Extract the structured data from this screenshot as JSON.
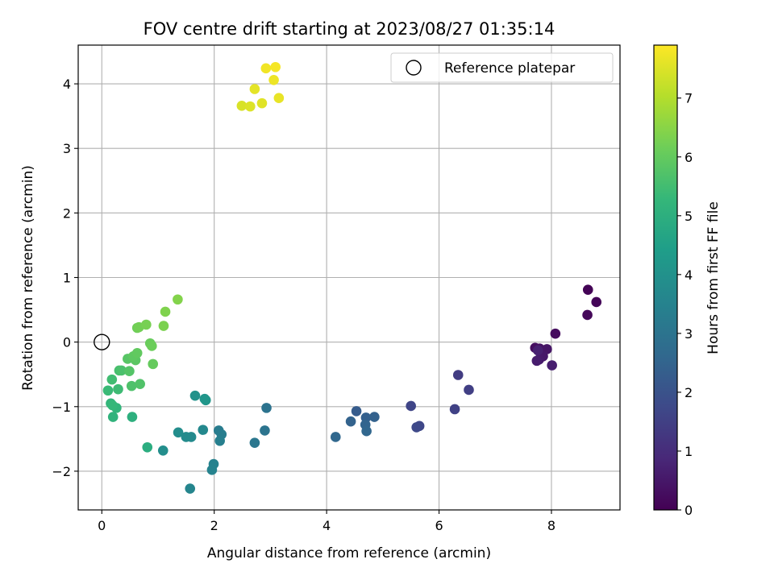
{
  "chart_data": {
    "type": "scatter",
    "title": "FOV centre drift starting at 2023/08/27 01:35:14",
    "xlabel": "Angular distance from reference (arcmin)",
    "ylabel": "Rotation from reference (arcmin)",
    "xlim": [
      -0.42,
      9.22
    ],
    "ylim": [
      -2.6,
      4.6
    ],
    "xticks": [
      0,
      2,
      4,
      6,
      8
    ],
    "yticks": [
      -2,
      -1,
      0,
      1,
      2,
      3,
      4
    ],
    "grid": true,
    "legend": {
      "position": "top-right",
      "entries": [
        "Reference platepar"
      ]
    },
    "reference_point": {
      "x": 0,
      "y": 0,
      "marker": "open-circle"
    },
    "colorbar": {
      "label": "Hours from first FF file",
      "colormap": "viridis",
      "range": [
        0,
        7.9
      ],
      "ticks": [
        0,
        1,
        2,
        3,
        4,
        5,
        6,
        7
      ],
      "colors": [
        "#440154",
        "#482878",
        "#3e4989",
        "#31688e",
        "#26828e",
        "#1f9e89",
        "#35b779",
        "#6ece58",
        "#b5de2b",
        "#fde725"
      ]
    },
    "points": [
      {
        "x": 8.65,
        "y": 0.81,
        "h": 0.05
      },
      {
        "x": 8.8,
        "y": 0.62,
        "h": 0.1
      },
      {
        "x": 8.64,
        "y": 0.42,
        "h": 0.15
      },
      {
        "x": 8.07,
        "y": 0.13,
        "h": 0.25
      },
      {
        "x": 7.71,
        "y": -0.09,
        "h": 0.3
      },
      {
        "x": 7.79,
        "y": -0.1,
        "h": 0.4
      },
      {
        "x": 7.92,
        "y": -0.11,
        "h": 0.45
      },
      {
        "x": 7.85,
        "y": -0.22,
        "h": 0.5
      },
      {
        "x": 7.78,
        "y": -0.27,
        "h": 0.55
      },
      {
        "x": 7.74,
        "y": -0.29,
        "h": 0.6
      },
      {
        "x": 8.01,
        "y": -0.36,
        "h": 0.65
      },
      {
        "x": 7.76,
        "y": -0.13,
        "h": 0.7
      },
      {
        "x": 6.34,
        "y": -0.51,
        "h": 1.4
      },
      {
        "x": 6.53,
        "y": -0.74,
        "h": 1.5
      },
      {
        "x": 6.28,
        "y": -1.04,
        "h": 1.55
      },
      {
        "x": 5.5,
        "y": -0.99,
        "h": 1.65
      },
      {
        "x": 5.65,
        "y": -1.3,
        "h": 1.7
      },
      {
        "x": 5.6,
        "y": -1.32,
        "h": 1.75
      },
      {
        "x": 4.53,
        "y": -1.07,
        "h": 2.3
      },
      {
        "x": 4.7,
        "y": -1.17,
        "h": 2.4
      },
      {
        "x": 4.85,
        "y": -1.16,
        "h": 2.45
      },
      {
        "x": 4.43,
        "y": -1.23,
        "h": 2.5
      },
      {
        "x": 4.69,
        "y": -1.28,
        "h": 2.55
      },
      {
        "x": 4.71,
        "y": -1.38,
        "h": 2.6
      },
      {
        "x": 4.16,
        "y": -1.47,
        "h": 2.65
      },
      {
        "x": 2.93,
        "y": -1.02,
        "h": 3.0
      },
      {
        "x": 2.9,
        "y": -1.37,
        "h": 3.05
      },
      {
        "x": 2.72,
        "y": -1.56,
        "h": 3.15
      },
      {
        "x": 2.08,
        "y": -1.37,
        "h": 3.3
      },
      {
        "x": 2.13,
        "y": -1.43,
        "h": 3.35
      },
      {
        "x": 2.1,
        "y": -1.53,
        "h": 3.4
      },
      {
        "x": 1.99,
        "y": -1.89,
        "h": 3.5
      },
      {
        "x": 1.96,
        "y": -1.98,
        "h": 3.55
      },
      {
        "x": 1.57,
        "y": -2.27,
        "h": 3.6
      },
      {
        "x": 1.8,
        "y": -1.36,
        "h": 3.7
      },
      {
        "x": 1.59,
        "y": -1.47,
        "h": 3.75
      },
      {
        "x": 1.5,
        "y": -1.47,
        "h": 3.8
      },
      {
        "x": 1.36,
        "y": -1.4,
        "h": 3.85
      },
      {
        "x": 1.09,
        "y": -1.68,
        "h": 3.9
      },
      {
        "x": 1.66,
        "y": -0.83,
        "h": 4.0
      },
      {
        "x": 1.83,
        "y": -0.88,
        "h": 4.1
      },
      {
        "x": 1.85,
        "y": -0.9,
        "h": 4.15
      },
      {
        "x": 0.81,
        "y": -1.63,
        "h": 4.9
      },
      {
        "x": 0.54,
        "y": -1.16,
        "h": 5.0
      },
      {
        "x": 0.2,
        "y": -1.16,
        "h": 5.1
      },
      {
        "x": 0.26,
        "y": -1.02,
        "h": 5.15
      },
      {
        "x": 0.16,
        "y": -0.95,
        "h": 5.2
      },
      {
        "x": 0.19,
        "y": -0.98,
        "h": 5.25
      },
      {
        "x": 0.11,
        "y": -0.75,
        "h": 5.35
      },
      {
        "x": 0.29,
        "y": -0.73,
        "h": 5.4
      },
      {
        "x": 0.18,
        "y": -0.58,
        "h": 5.45
      },
      {
        "x": 0.31,
        "y": -0.44,
        "h": 5.55
      },
      {
        "x": 0.35,
        "y": -0.44,
        "h": 5.6
      },
      {
        "x": 0.53,
        "y": -0.68,
        "h": 5.65
      },
      {
        "x": 0.68,
        "y": -0.65,
        "h": 5.7
      },
      {
        "x": 0.49,
        "y": -0.45,
        "h": 5.75
      },
      {
        "x": 0.46,
        "y": -0.26,
        "h": 5.8
      },
      {
        "x": 0.6,
        "y": -0.28,
        "h": 5.85
      },
      {
        "x": 0.56,
        "y": -0.22,
        "h": 5.9
      },
      {
        "x": 0.63,
        "y": -0.17,
        "h": 5.95
      },
      {
        "x": 0.91,
        "y": -0.34,
        "h": 6.0
      },
      {
        "x": 0.86,
        "y": -0.02,
        "h": 6.05
      },
      {
        "x": 0.89,
        "y": -0.06,
        "h": 6.1
      },
      {
        "x": 0.63,
        "y": 0.22,
        "h": 6.15
      },
      {
        "x": 0.66,
        "y": 0.23,
        "h": 6.2
      },
      {
        "x": 0.79,
        "y": 0.27,
        "h": 6.25
      },
      {
        "x": 1.1,
        "y": 0.25,
        "h": 6.3
      },
      {
        "x": 1.13,
        "y": 0.47,
        "h": 6.35
      },
      {
        "x": 1.35,
        "y": 0.66,
        "h": 6.4
      },
      {
        "x": 2.49,
        "y": 3.66,
        "h": 7.45
      },
      {
        "x": 2.64,
        "y": 3.65,
        "h": 7.5
      },
      {
        "x": 2.85,
        "y": 3.7,
        "h": 7.55
      },
      {
        "x": 2.72,
        "y": 3.92,
        "h": 7.6
      },
      {
        "x": 3.15,
        "y": 3.78,
        "h": 7.65
      },
      {
        "x": 3.06,
        "y": 4.06,
        "h": 7.7
      },
      {
        "x": 2.92,
        "y": 4.24,
        "h": 7.75
      },
      {
        "x": 3.09,
        "y": 4.26,
        "h": 7.8
      }
    ]
  }
}
